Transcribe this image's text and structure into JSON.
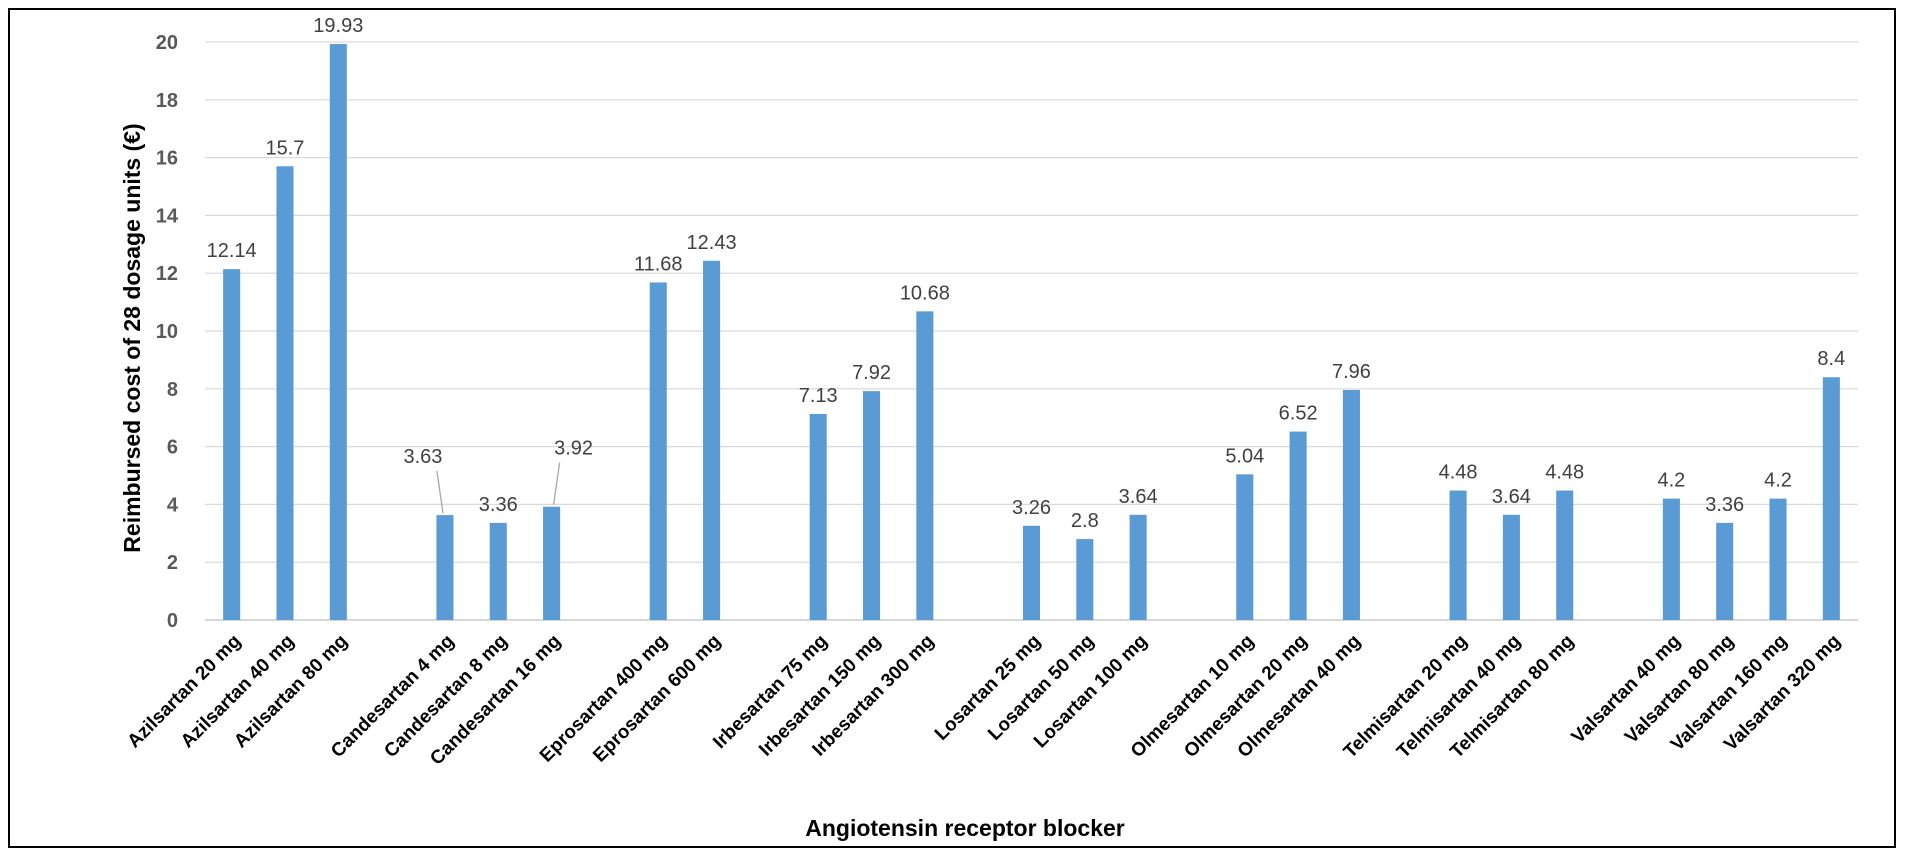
{
  "chart_data": {
    "type": "bar",
    "title": "",
    "xlabel": "Angiotensin receptor blocker",
    "ylabel": "Reimbursed cost of 28 dosage units (€)",
    "ylim": [
      0,
      20
    ],
    "yticks": [
      0,
      2,
      4,
      6,
      8,
      10,
      12,
      14,
      16,
      18,
      20
    ],
    "grid": true,
    "legend": "none",
    "bar_color": "#5b9bd5",
    "groups": [
      {
        "categories": [
          "Azilsartan 20 mg",
          "Azilsartan 40 mg",
          "Azilsartan 80 mg"
        ],
        "values": [
          12.14,
          15.7,
          19.93
        ],
        "labels": [
          "12.14",
          "15.7",
          "19.93"
        ]
      },
      {
        "categories": [
          "Candesartan 4 mg",
          "Candesartan 8 mg",
          "Candesartan 16 mg"
        ],
        "values": [
          3.63,
          3.36,
          3.92
        ],
        "labels": [
          "3.63",
          "3.36",
          "3.92"
        ]
      },
      {
        "categories": [
          "Eprosartan 400 mg",
          "Eprosartan 600 mg"
        ],
        "values": [
          11.68,
          12.43
        ],
        "labels": [
          "11.68",
          "12.43"
        ]
      },
      {
        "categories": [
          "Irbesartan 75 mg",
          "Irbesartan 150 mg",
          "Irbesartan 300 mg"
        ],
        "values": [
          7.13,
          7.92,
          10.68
        ],
        "labels": [
          "7.13",
          "7.92",
          "10.68"
        ]
      },
      {
        "categories": [
          "Losartan 25 mg",
          "Losartan 50 mg",
          "Losartan 100 mg"
        ],
        "values": [
          3.26,
          2.8,
          3.64
        ],
        "labels": [
          "3.26",
          "2.8",
          "3.64"
        ]
      },
      {
        "categories": [
          "Olmesartan 10 mg",
          "Olmesartan 20 mg",
          "Olmesartan 40 mg"
        ],
        "values": [
          5.04,
          6.52,
          7.96
        ],
        "labels": [
          "5.04",
          "6.52",
          "7.96"
        ]
      },
      {
        "categories": [
          "Telmisartan 20 mg",
          "Telmisartan 40 mg",
          "Telmisartan 80 mg"
        ],
        "values": [
          4.48,
          3.64,
          4.48
        ],
        "labels": [
          "4.48",
          "3.64",
          "4.48"
        ]
      },
      {
        "categories": [
          "Valsartan 40 mg",
          "Valsartan 80 mg",
          "Valsartan 160 mg",
          "Valsartan  320 mg"
        ],
        "values": [
          4.2,
          3.36,
          4.2,
          8.4
        ],
        "labels": [
          "4.2",
          "3.36",
          "4.2",
          "8.4"
        ]
      }
    ]
  }
}
